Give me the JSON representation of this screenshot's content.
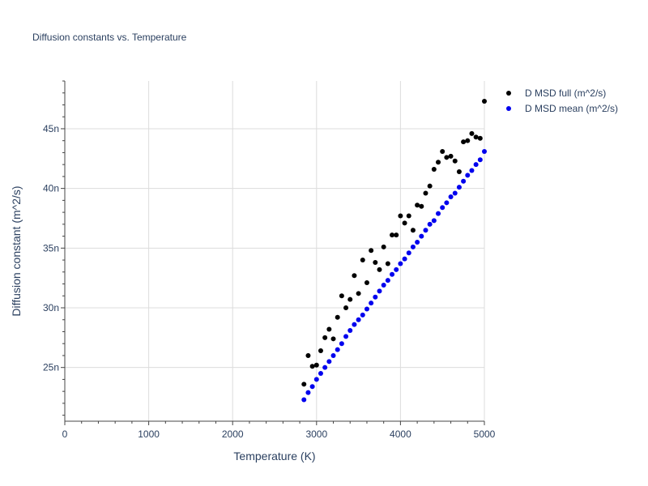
{
  "chart_data": {
    "type": "scatter",
    "title": "Diffusion constants vs. Temperature",
    "xlabel": "Temperature (K)",
    "ylabel": "Diffusion constant (m^2/s)",
    "xlim": [
      0,
      5000
    ],
    "ylim": [
      20.5,
      49
    ],
    "x_ticks": [
      0,
      1000,
      2000,
      3000,
      4000,
      5000
    ],
    "x_tick_labels": [
      "0",
      "1000",
      "2000",
      "3000",
      "4000",
      "5000"
    ],
    "y_ticks": [
      25,
      30,
      35,
      40,
      45
    ],
    "y_tick_labels": [
      "25n",
      "30n",
      "35n",
      "40n",
      "45n"
    ],
    "grid": true,
    "legend_position": "top-right",
    "series": [
      {
        "name": "D MSD full (m^2/s)",
        "color": "#000000",
        "x": [
          2850,
          2900,
          2950,
          3000,
          3050,
          3100,
          3150,
          3200,
          3250,
          3300,
          3350,
          3400,
          3450,
          3500,
          3550,
          3600,
          3650,
          3700,
          3750,
          3800,
          3850,
          3900,
          3950,
          4000,
          4050,
          4100,
          4150,
          4200,
          4250,
          4300,
          4350,
          4400,
          4450,
          4500,
          4550,
          4600,
          4650,
          4700,
          4750,
          4800,
          4850,
          4900,
          4950,
          5000
        ],
        "y": [
          23.6,
          26.0,
          25.1,
          25.2,
          26.4,
          27.5,
          28.2,
          27.4,
          29.2,
          31.0,
          30.0,
          30.7,
          32.7,
          31.2,
          34.0,
          32.1,
          34.8,
          33.8,
          33.2,
          35.1,
          33.7,
          36.1,
          36.1,
          37.7,
          37.1,
          37.7,
          36.5,
          38.6,
          38.5,
          39.6,
          40.2,
          41.6,
          42.2,
          43.1,
          42.6,
          42.7,
          42.3,
          41.4,
          43.9,
          44.0,
          44.6,
          44.3,
          44.2,
          47.3
        ]
      },
      {
        "name": "D MSD mean (m^2/s)",
        "color": "#0000ee",
        "x": [
          2850,
          2900,
          2950,
          3000,
          3050,
          3100,
          3150,
          3200,
          3250,
          3300,
          3350,
          3400,
          3450,
          3500,
          3550,
          3600,
          3650,
          3700,
          3750,
          3800,
          3850,
          3900,
          3950,
          4000,
          4050,
          4100,
          4150,
          4200,
          4250,
          4300,
          4350,
          4400,
          4450,
          4500,
          4550,
          4600,
          4650,
          4700,
          4750,
          4800,
          4850,
          4900,
          4950,
          5000
        ],
        "y": [
          22.3,
          22.9,
          23.4,
          24.0,
          24.5,
          25.0,
          25.5,
          26.0,
          26.5,
          27.0,
          27.6,
          28.1,
          28.6,
          29.0,
          29.4,
          29.9,
          30.4,
          30.9,
          31.4,
          31.9,
          32.3,
          32.8,
          33.2,
          33.7,
          34.1,
          34.6,
          35.1,
          35.5,
          36.0,
          36.5,
          37.0,
          37.3,
          37.9,
          38.4,
          38.8,
          39.3,
          39.6,
          40.1,
          40.6,
          41.1,
          41.5,
          42.0,
          42.4,
          43.1
        ]
      }
    ]
  }
}
